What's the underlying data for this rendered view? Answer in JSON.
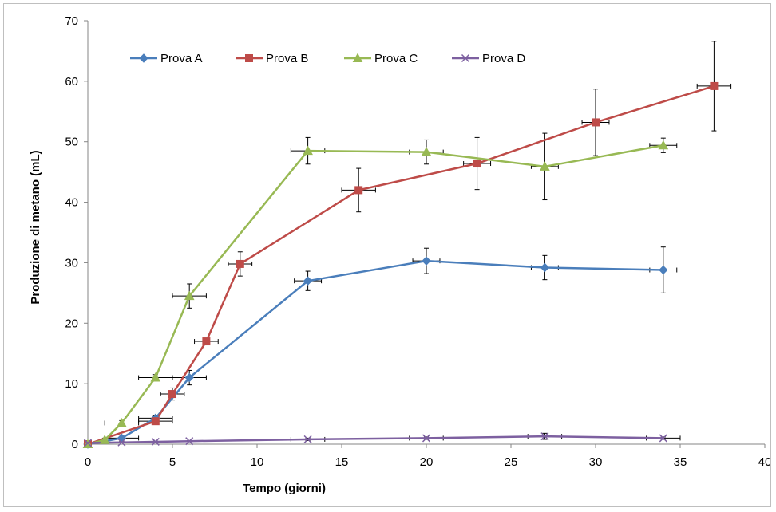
{
  "chart_data": {
    "type": "line",
    "title": "",
    "xlabel": "Tempo (giorni)",
    "ylabel": "Produzione di metano (mL)",
    "xlim": [
      0,
      40
    ],
    "ylim": [
      0,
      70
    ],
    "xticks": [
      "0",
      "5",
      "10",
      "15",
      "20",
      "25",
      "30",
      "35",
      "40"
    ],
    "yticks": [
      "0",
      "10",
      "20",
      "30",
      "40",
      "50",
      "60",
      "70"
    ],
    "grid": false,
    "legend_position": "top",
    "series": [
      {
        "name": "Prova A",
        "color": "#4a7ebb",
        "marker": "diamond",
        "points": [
          {
            "x": 0,
            "y": 0,
            "ey": 0.3,
            "ex": 0
          },
          {
            "x": 2,
            "y": 1.0,
            "ey": 0.5,
            "ex": 1
          },
          {
            "x": 4,
            "y": 4.3,
            "ey": 0.5,
            "ex": 1
          },
          {
            "x": 6,
            "y": 11.0,
            "ey": 1.2,
            "ex": 1
          },
          {
            "x": 13,
            "y": 27.0,
            "ey": 1.6,
            "ex": 0.8
          },
          {
            "x": 20,
            "y": 30.3,
            "ey": 2.1,
            "ex": 0.8
          },
          {
            "x": 27,
            "y": 29.2,
            "ey": 2.0,
            "ex": 0.8
          },
          {
            "x": 34,
            "y": 28.8,
            "ey": 3.8,
            "ex": 0.8
          }
        ]
      },
      {
        "name": "Prova B",
        "color": "#be4b48",
        "marker": "square",
        "points": [
          {
            "x": 0,
            "y": 0,
            "ey": 0.3,
            "ex": 0
          },
          {
            "x": 4,
            "y": 3.8,
            "ey": 0.5,
            "ex": 1
          },
          {
            "x": 5,
            "y": 8.3,
            "ey": 1.0,
            "ex": 0.7
          },
          {
            "x": 7,
            "y": 17.0,
            "ey": 0.5,
            "ex": 0.7
          },
          {
            "x": 9,
            "y": 29.8,
            "ey": 2.0,
            "ex": 0.7
          },
          {
            "x": 16,
            "y": 42.0,
            "ey": 3.6,
            "ex": 1
          },
          {
            "x": 23,
            "y": 46.4,
            "ey": 4.3,
            "ex": 0.8
          },
          {
            "x": 30,
            "y": 53.2,
            "ey": 5.5,
            "ex": 0.8
          },
          {
            "x": 37,
            "y": 59.2,
            "ey": 7.4,
            "ex": 1
          }
        ]
      },
      {
        "name": "Prova C",
        "color": "#98b954",
        "marker": "triangle",
        "points": [
          {
            "x": 0,
            "y": 0,
            "ey": 0.3,
            "ex": 0
          },
          {
            "x": 1,
            "y": 0.7,
            "ey": 0.3,
            "ex": 0
          },
          {
            "x": 2,
            "y": 3.5,
            "ey": 0.4,
            "ex": 1
          },
          {
            "x": 4,
            "y": 11.0,
            "ey": 0.5,
            "ex": 1
          },
          {
            "x": 6,
            "y": 24.5,
            "ey": 2.0,
            "ex": 1
          },
          {
            "x": 13,
            "y": 48.5,
            "ey": 2.2,
            "ex": 1
          },
          {
            "x": 20,
            "y": 48.3,
            "ey": 2.0,
            "ex": 1
          },
          {
            "x": 27,
            "y": 45.9,
            "ey": 5.5,
            "ex": 0.8
          },
          {
            "x": 34,
            "y": 49.4,
            "ey": 1.2,
            "ex": 0.8
          }
        ]
      },
      {
        "name": "Prova D",
        "color": "#7d60a0",
        "marker": "x",
        "points": [
          {
            "x": 0,
            "y": 0.2,
            "ey": 0.1,
            "ex": 0
          },
          {
            "x": 2,
            "y": 0.3,
            "ey": 0.1,
            "ex": 0
          },
          {
            "x": 4,
            "y": 0.4,
            "ey": 0.1,
            "ex": 0
          },
          {
            "x": 6,
            "y": 0.5,
            "ey": 0.1,
            "ex": 0
          },
          {
            "x": 13,
            "y": 0.8,
            "ey": 0.2,
            "ex": 1
          },
          {
            "x": 20,
            "y": 1.0,
            "ey": 0.2,
            "ex": 1
          },
          {
            "x": 27,
            "y": 1.3,
            "ey": 0.5,
            "ex": 1
          },
          {
            "x": 34,
            "y": 1.0,
            "ey": 0.2,
            "ex": 1
          }
        ]
      }
    ]
  }
}
